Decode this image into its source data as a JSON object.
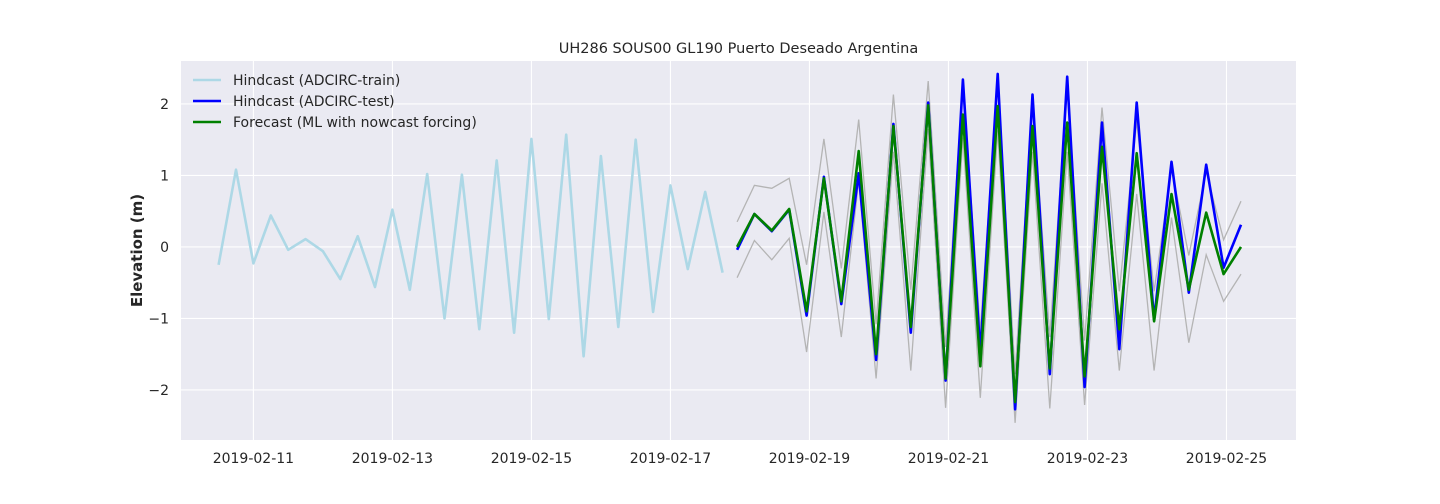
{
  "chart_data": {
    "type": "line",
    "title": "UH286 SOUS00 GL190 Puerto Deseado Argentina",
    "xlabel": "",
    "ylabel": "Elevation (m)",
    "x_ticks": [
      "2019-02-11",
      "2019-02-13",
      "2019-02-15",
      "2019-02-17",
      "2019-02-19",
      "2019-02-21",
      "2019-02-23",
      "2019-02-25"
    ],
    "y_ticks": [
      -2,
      -1,
      0,
      1,
      2
    ],
    "y_tick_labels": [
      "−2",
      "−1",
      "0",
      "1",
      "2"
    ],
    "xlim": [
      "2019-02-09 23:00",
      "2019-02-26 00:00"
    ],
    "ylim": [
      -2.7,
      2.6
    ],
    "grid": true,
    "legend_position": "top-left",
    "colors": {
      "background": "#eaeaf2",
      "grid": "#ffffff",
      "train": "#add8e6",
      "test": "#0000ff",
      "forecast": "#008000",
      "envelope": "#b4b4b4"
    },
    "series": [
      {
        "name": "Hindcast (ADCIRC-train)",
        "color": "#add8e6",
        "x": [
          "2019-02-10 12:00",
          "2019-02-10 18:00",
          "2019-02-11 00:00",
          "2019-02-11 06:00",
          "2019-02-11 12:00",
          "2019-02-11 18:00",
          "2019-02-12 00:00",
          "2019-02-12 06:00",
          "2019-02-12 12:00",
          "2019-02-12 18:00",
          "2019-02-13 00:00",
          "2019-02-13 06:00",
          "2019-02-13 12:00",
          "2019-02-13 18:00",
          "2019-02-14 00:00",
          "2019-02-14 06:00",
          "2019-02-14 12:00",
          "2019-02-14 18:00",
          "2019-02-15 00:00",
          "2019-02-15 06:00",
          "2019-02-15 12:00",
          "2019-02-15 18:00",
          "2019-02-16 00:00",
          "2019-02-16 06:00",
          "2019-02-16 12:00",
          "2019-02-16 18:00",
          "2019-02-17 00:00",
          "2019-02-17 06:00",
          "2019-02-17 12:00",
          "2019-02-17 18:00"
        ],
        "values": [
          -0.25,
          1.08,
          -0.23,
          0.44,
          -0.04,
          0.11,
          -0.06,
          -0.45,
          0.15,
          -0.56,
          0.52,
          -0.6,
          1.02,
          -1.0,
          1.01,
          -1.15,
          1.21,
          -1.2,
          1.51,
          -1.01,
          1.57,
          -1.53,
          1.27,
          -1.12,
          1.5,
          -0.91,
          0.86,
          -0.31,
          0.77,
          -0.36
        ]
      },
      {
        "name": "Hindcast (ADCIRC-test)",
        "color": "#0000ff",
        "x": [
          "2019-02-17 23:00",
          "2019-02-18 05:00",
          "2019-02-18 11:00",
          "2019-02-18 17:00",
          "2019-02-18 23:00",
          "2019-02-19 05:00",
          "2019-02-19 11:00",
          "2019-02-19 17:00",
          "2019-02-19 23:00",
          "2019-02-20 05:00",
          "2019-02-20 11:00",
          "2019-02-20 17:00",
          "2019-02-20 23:00",
          "2019-02-21 05:00",
          "2019-02-21 11:00",
          "2019-02-21 17:00",
          "2019-02-21 23:00",
          "2019-02-22 05:00",
          "2019-02-22 11:00",
          "2019-02-22 17:00",
          "2019-02-22 23:00",
          "2019-02-23 05:00",
          "2019-02-23 11:00",
          "2019-02-23 17:00",
          "2019-02-23 23:00",
          "2019-02-24 05:00",
          "2019-02-24 11:00",
          "2019-02-24 17:00",
          "2019-02-24 23:00",
          "2019-02-25 05:00"
        ],
        "values": [
          -0.04,
          0.46,
          0.22,
          0.52,
          -0.96,
          0.98,
          -0.8,
          1.03,
          -1.58,
          1.72,
          -1.2,
          2.02,
          -1.87,
          2.34,
          -1.48,
          2.42,
          -2.27,
          2.13,
          -1.78,
          2.38,
          -1.96,
          1.74,
          -1.43,
          2.02,
          -1.02,
          1.19,
          -0.64,
          1.15,
          -0.29,
          0.31
        ]
      },
      {
        "name": "Forecast (ML with nowcast forcing)",
        "color": "#008000",
        "x": [
          "2019-02-17 23:00",
          "2019-02-18 05:00",
          "2019-02-18 11:00",
          "2019-02-18 17:00",
          "2019-02-18 23:00",
          "2019-02-19 05:00",
          "2019-02-19 11:00",
          "2019-02-19 17:00",
          "2019-02-19 23:00",
          "2019-02-20 05:00",
          "2019-02-20 11:00",
          "2019-02-20 17:00",
          "2019-02-20 23:00",
          "2019-02-21 05:00",
          "2019-02-21 11:00",
          "2019-02-21 17:00",
          "2019-02-21 23:00",
          "2019-02-22 05:00",
          "2019-02-22 11:00",
          "2019-02-22 17:00",
          "2019-02-22 23:00",
          "2019-02-23 05:00",
          "2019-02-23 11:00",
          "2019-02-23 17:00",
          "2019-02-23 23:00",
          "2019-02-24 05:00",
          "2019-02-24 11:00",
          "2019-02-24 17:00",
          "2019-02-24 23:00",
          "2019-02-25 05:00"
        ],
        "values": [
          0.0,
          0.46,
          0.23,
          0.53,
          -0.9,
          0.96,
          -0.76,
          1.34,
          -1.5,
          1.69,
          -1.12,
          1.98,
          -1.84,
          1.85,
          -1.67,
          1.97,
          -2.17,
          1.69,
          -1.7,
          1.74,
          -1.81,
          1.4,
          -1.15,
          1.31,
          -1.04,
          0.74,
          -0.6,
          0.48,
          -0.38,
          0.0
        ]
      }
    ],
    "bands": [
      {
        "color": "#b4b4b4",
        "x": [
          "2019-02-17 23:00",
          "2019-02-18 05:00",
          "2019-02-18 11:00",
          "2019-02-18 17:00",
          "2019-02-18 23:00",
          "2019-02-19 05:00",
          "2019-02-19 11:00",
          "2019-02-19 17:00",
          "2019-02-19 23:00",
          "2019-02-20 05:00",
          "2019-02-20 11:00",
          "2019-02-20 17:00",
          "2019-02-20 23:00",
          "2019-02-21 05:00",
          "2019-02-21 11:00",
          "2019-02-21 17:00",
          "2019-02-21 23:00",
          "2019-02-22 05:00",
          "2019-02-22 11:00",
          "2019-02-22 17:00",
          "2019-02-22 23:00",
          "2019-02-23 05:00",
          "2019-02-23 11:00",
          "2019-02-23 17:00",
          "2019-02-23 23:00",
          "2019-02-24 05:00",
          "2019-02-24 11:00",
          "2019-02-24 17:00",
          "2019-02-24 23:00",
          "2019-02-25 05:00"
        ],
        "upper": [
          0.35,
          0.86,
          0.82,
          0.96,
          -0.25,
          1.51,
          -0.3,
          1.78,
          -1.08,
          2.13,
          -0.6,
          2.32,
          -1.4,
          2.3,
          -1.18,
          2.36,
          -1.78,
          2.08,
          -1.26,
          2.27,
          -1.31,
          1.95,
          -0.62,
          1.76,
          -0.62,
          1.1,
          -0.12,
          1.05,
          0.1,
          0.64
        ],
        "lower": [
          -0.43,
          0.09,
          -0.18,
          0.12,
          -1.47,
          0.49,
          -1.26,
          0.93,
          -1.84,
          1.33,
          -1.73,
          1.65,
          -2.25,
          1.53,
          -2.11,
          1.63,
          -2.46,
          1.33,
          -2.26,
          1.33,
          -2.21,
          0.89,
          -1.73,
          0.74,
          -1.73,
          0.41,
          -1.34,
          -0.11,
          -0.76,
          -0.38
        ]
      }
    ]
  }
}
